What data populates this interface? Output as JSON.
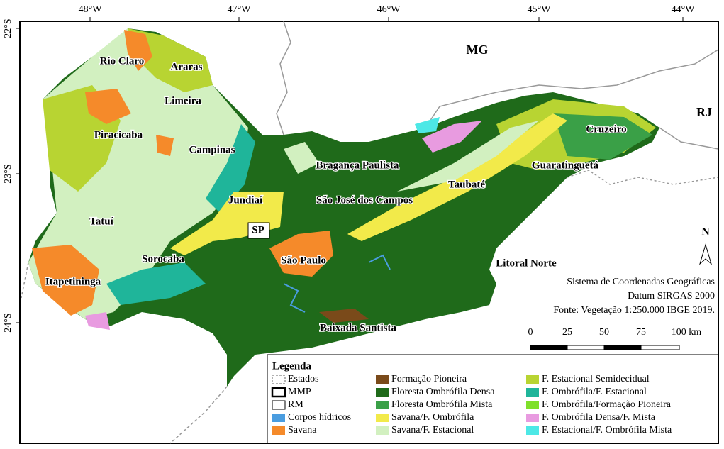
{
  "axes": {
    "top": [
      "48°W",
      "47°W",
      "46°W",
      "45°W",
      "44°W"
    ],
    "left": [
      "22°S",
      "23°S",
      "24°S"
    ]
  },
  "states": [
    "MG",
    "RJ"
  ],
  "regions": [
    "Rio Claro",
    "Araras",
    "Limeira",
    "Piracicaba",
    "Campinas",
    "Bragança Paulista",
    "Cruzeiro",
    "Guaratinguetá",
    "Jundiaí",
    "Taubaté",
    "São José dos Campos",
    "Tatuí",
    "SP",
    "Sorocaba",
    "São Paulo",
    "Litoral Norte",
    "Itapetininga",
    "Baixada Santista"
  ],
  "north": "N",
  "info": [
    "Sistema de Coordenadas Geográficas",
    "Datum SIRGAS 2000",
    "Fonte: Vegetação 1:250.000 IBGE 2019."
  ],
  "scale": [
    "0",
    "25",
    "50",
    "75",
    "100 km"
  ],
  "legend": {
    "title": "Legenda",
    "items": [
      "Estados",
      "MMP",
      "RM",
      "Corpos hídricos",
      "Savana",
      "Formação Pioneira",
      "Floresta Ombrófila Densa",
      "Floresta Ombrófila Mista",
      "Savana/F. Ombrófila",
      "Savana/F. Estacional",
      "F. Estacional Semidecidual",
      "F. Ombrófila/F. Estacional",
      "F. Ombrófila/Formação Pioneira",
      "F. Ombrófila Densa/F. Mista",
      "F. Estacional/F. Ombrófila Mista"
    ]
  }
}
